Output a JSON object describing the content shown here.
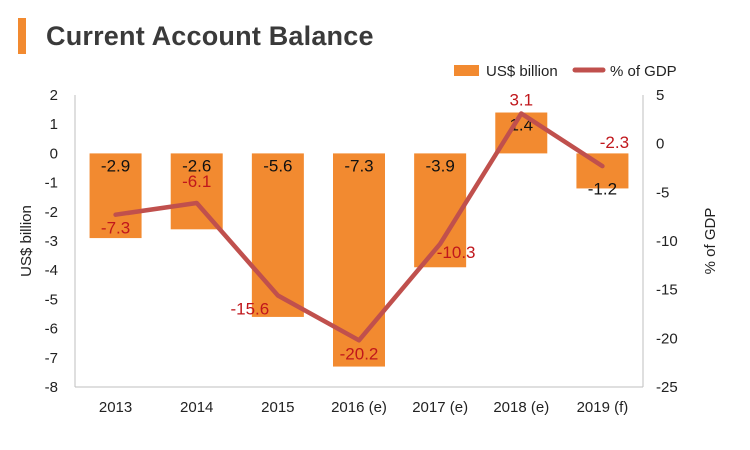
{
  "chart_data": {
    "type": "bar+line",
    "title": "Current Account Balance",
    "categories": [
      "2013",
      "2014",
      "2015",
      "2016 (e)",
      "2017 (e)",
      "2018 (e)",
      "2019 (f)"
    ],
    "series": [
      {
        "name": "US$ billion",
        "type": "bar",
        "axis": "left",
        "values": [
          -2.9,
          -2.6,
          -5.6,
          -7.3,
          -3.9,
          1.4,
          -1.2
        ],
        "labels": [
          "-2.9",
          "-2.6",
          "-5.6",
          "-7.3",
          "-3.9",
          "1.4",
          "-1.2"
        ],
        "color": "#f28a30"
      },
      {
        "name": "% of GDP",
        "type": "line",
        "axis": "right",
        "values": [
          -7.3,
          -6.1,
          -15.6,
          -20.2,
          -10.3,
          3.1,
          -2.3
        ],
        "labels": [
          "-7.3",
          "-6.1",
          "-15.6",
          "-20.2",
          "-10.3",
          "3.1",
          "-2.3"
        ],
        "color": "#c0504d",
        "label_color": "#c0171c"
      }
    ],
    "y_left": {
      "label": "US$ billion",
      "range": [
        -8,
        2
      ],
      "ticks": [
        2,
        1,
        0,
        -1,
        -2,
        -3,
        -4,
        -5,
        -6,
        -7,
        -8
      ],
      "tick_labels": [
        "2",
        "1",
        "0",
        "-1",
        "-2",
        "-3",
        "-4",
        "-5",
        "-6",
        "-7",
        "-8"
      ]
    },
    "y_right": {
      "label": "% of GDP",
      "range": [
        -25,
        5
      ],
      "ticks": [
        5,
        0,
        -5,
        -10,
        -15,
        -20,
        -25
      ],
      "tick_labels": [
        "5",
        "0",
        "-5",
        "-10",
        "-15",
        "-20",
        "-25"
      ]
    },
    "legend_position": "top-right",
    "grid": false
  }
}
